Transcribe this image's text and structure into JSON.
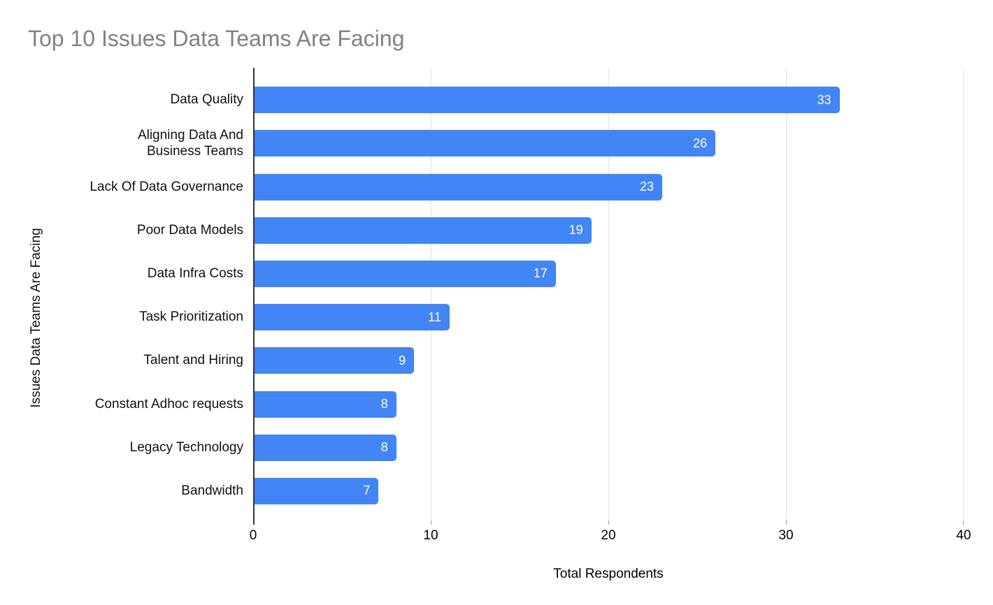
{
  "chart_data": {
    "type": "bar",
    "orientation": "horizontal",
    "title": "Top 10 Issues Data Teams Are Facing",
    "categories": [
      "Data Quality",
      "Aligning Data And\nBusiness Teams",
      "Lack Of Data Governance",
      "Poor Data Models",
      "Data Infra Costs",
      "Task Prioritization",
      "Talent and Hiring",
      "Constant Adhoc requests",
      "Legacy Technology",
      "Bandwidth"
    ],
    "values": [
      33,
      26,
      23,
      19,
      17,
      11,
      9,
      8,
      8,
      7
    ],
    "xlabel": "Total Respondents",
    "ylabel": "Issues Data Teams Are Facing",
    "xlim": [
      0,
      40
    ],
    "xticks": [
      0,
      10,
      20,
      30,
      40
    ],
    "grid": true,
    "legend": "none",
    "value_label_position": "inside-end"
  },
  "colors": {
    "background": "#ffffff",
    "title": "#828282",
    "bar": "#4285F4",
    "gridline": "#e3e3e3",
    "axis_line": "#333333",
    "tick_text": "#000000",
    "category_text": "#111111",
    "value_text": "#ffffff"
  }
}
